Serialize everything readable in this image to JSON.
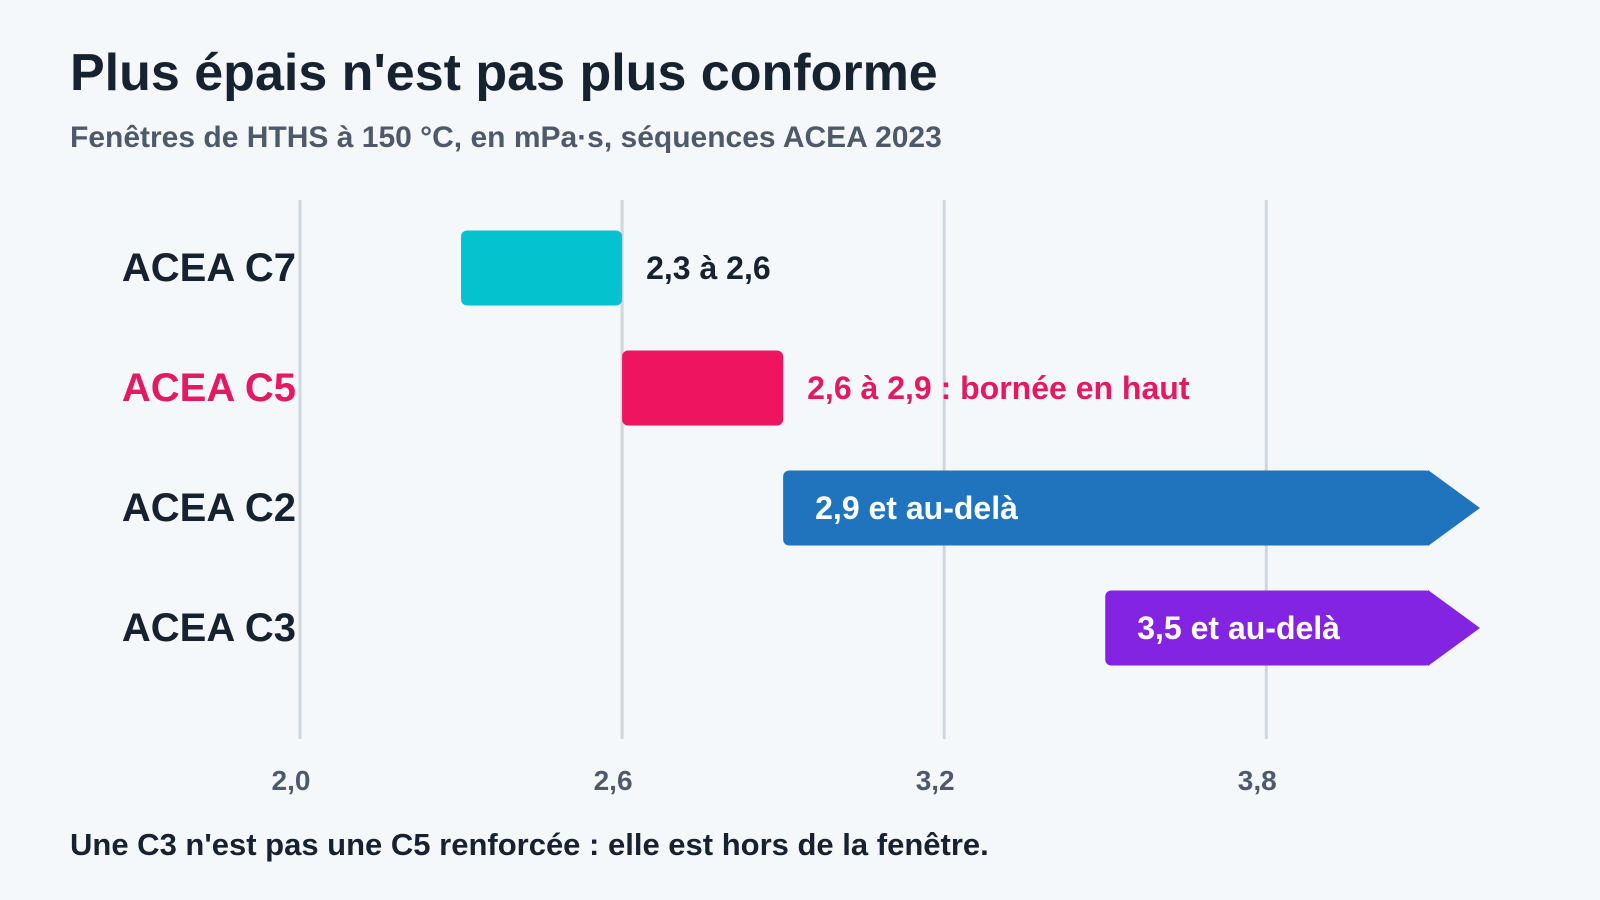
{
  "header": {
    "title": "Plus épais n'est pas plus conforme",
    "subtitle": "Fenêtres de HTHS à 150 °C, en mPa·s, séquences ACEA 2023"
  },
  "footnote": "Une C3 n'est pas une C5 renforcée : elle est hors de la fenêtre.",
  "colors": {
    "text": "#172230",
    "axis_text": "#4e5a69",
    "grid": "#cfd6de",
    "background": "#f5f8fa"
  },
  "chart_data": {
    "type": "range-bar",
    "orientation": "horizontal",
    "title": "Plus épais n'est pas plus conforme",
    "subtitle": "Fenêtres de HTHS à 150 °C, en mPa·s, séquences ACEA 2023",
    "xlabel": "",
    "ylabel": "",
    "xlim": [
      2.0,
      4.2
    ],
    "xticks": [
      2.0,
      2.6,
      3.2,
      3.8
    ],
    "xtick_labels": [
      "2,0",
      "2,6",
      "3,2",
      "3,8"
    ],
    "grid": true,
    "legend": "none",
    "series": [
      {
        "category": "ACEA C7",
        "min": 2.3,
        "max": 2.6,
        "open_ended": false,
        "label": "2,3 à 2,6",
        "label_position": "outside",
        "color": "#05c2cf",
        "label_color": "#172230",
        "category_color": "#172230"
      },
      {
        "category": "ACEA C5",
        "min": 2.6,
        "max": 2.9,
        "open_ended": false,
        "label": "2,6 à 2,9 : bornée en haut",
        "label_position": "outside",
        "color": "#ef145f",
        "label_color": "#e31a63",
        "category_color": "#e31a63"
      },
      {
        "category": "ACEA C2",
        "min": 2.9,
        "max": null,
        "open_ended": true,
        "label": "2,9 et au-delà",
        "label_position": "inside",
        "color": "#1f74bd",
        "label_color": "#ffffff",
        "category_color": "#172230"
      },
      {
        "category": "ACEA C3",
        "min": 3.5,
        "max": null,
        "open_ended": true,
        "label": "3,5 et au-delà",
        "label_position": "inside",
        "color": "#8424e3",
        "label_color": "#ffffff",
        "category_color": "#172230"
      }
    ]
  }
}
